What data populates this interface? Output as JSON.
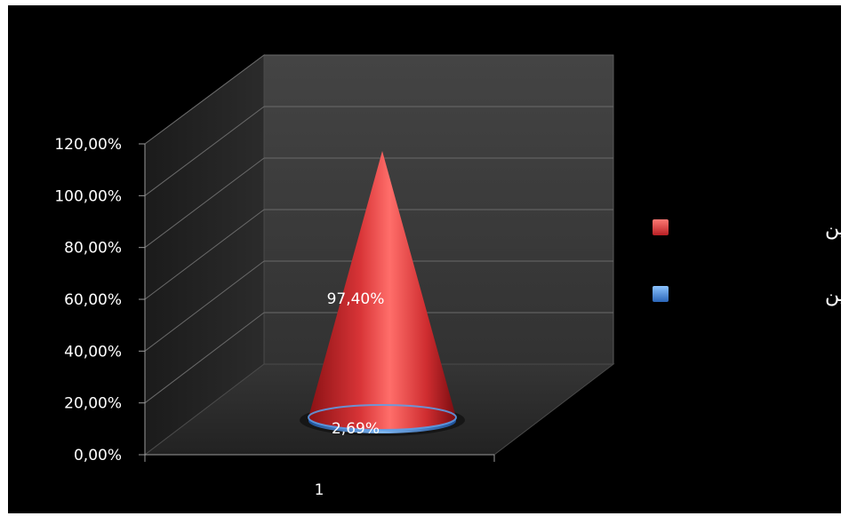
{
  "chart_data": {
    "type": "3d-cone-column",
    "title": "",
    "xlabel": "",
    "ylabel": "",
    "ylim": [
      0,
      1.2
    ],
    "y_ticks": [
      "0,00%",
      "20,00%",
      "40,00%",
      "60,00%",
      "80,00%",
      "100,00%",
      "120,00%"
    ],
    "categories": [
      "1"
    ],
    "series": [
      {
        "name": "نسبة الناجحين",
        "values": [
          0.974
        ],
        "label": "97,40%",
        "color": "#e0383a"
      },
      {
        "name": "نسبة الراسبين",
        "values": [
          0.0269
        ],
        "label": "2,69%",
        "color": "#4a8fd6"
      }
    ],
    "grid": true,
    "legend_position": "right"
  }
}
